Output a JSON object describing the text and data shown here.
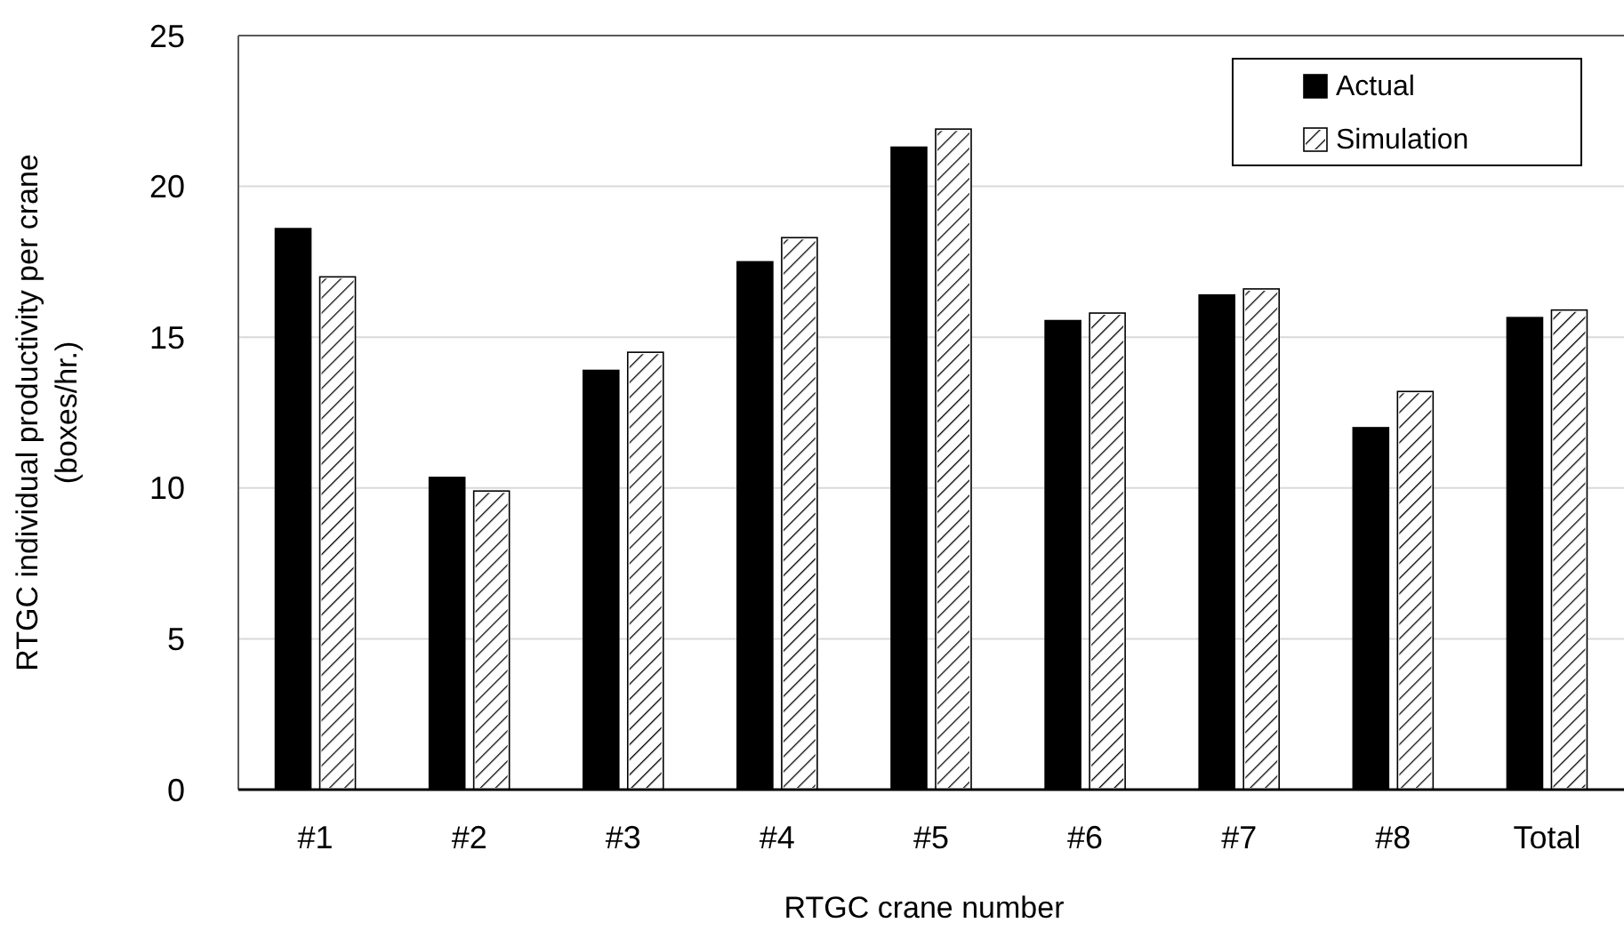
{
  "chart_data": {
    "type": "bar",
    "xlabel": "RTGC crane number",
    "ylabel": "RTGC individual productivity per crane (boxes/hr.)",
    "categories": [
      "#1",
      "#2",
      "#3",
      "#4",
      "#5",
      "#6",
      "#7",
      "#8",
      "Total"
    ],
    "series": [
      {
        "name": "Actual",
        "color": "#000000",
        "values": [
          18.6,
          10.35,
          13.9,
          17.5,
          21.3,
          15.55,
          16.4,
          12.0,
          15.65
        ]
      },
      {
        "name": "Simulation",
        "color": "#ffffff",
        "values": [
          17.0,
          9.9,
          14.5,
          18.3,
          21.9,
          15.8,
          16.6,
          13.2,
          15.9
        ]
      }
    ],
    "ylim": [
      0,
      25
    ],
    "yticks": [
      0,
      5,
      10,
      15,
      20,
      25
    ],
    "grid": "y",
    "legend": "top right"
  }
}
